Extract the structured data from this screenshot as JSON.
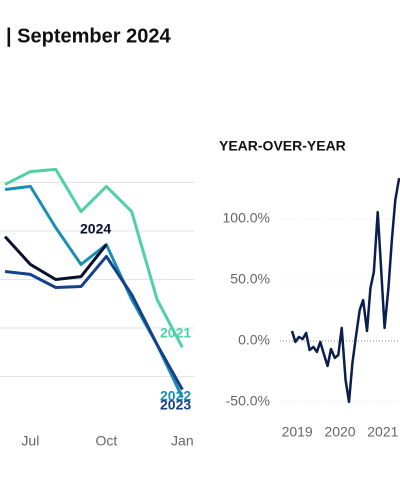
{
  "chart_data": [
    {
      "type": "line",
      "title": "| September 2024",
      "x": [
        6,
        7,
        8,
        9,
        10,
        11,
        12,
        13
      ],
      "xlim": [
        5.8,
        13.5
      ],
      "xticks": [
        {
          "value": 7,
          "label": "Jul"
        },
        {
          "value": 10,
          "label": "Oct"
        },
        {
          "value": 13,
          "label": "Jan"
        }
      ],
      "ylim": [
        0,
        120
      ],
      "yticks": [
        20,
        40,
        60,
        80,
        100
      ],
      "grid": true,
      "series": [
        {
          "name": "2021",
          "color": "#4fd1a5",
          "values": [
            99.2,
            104.5,
            105.4,
            88.0,
            98.4,
            88.0,
            51.8,
            32.0
          ]
        },
        {
          "name": "2022",
          "color": "#1a8fb5",
          "values": [
            97.1,
            98.4,
            81.4,
            66.2,
            74.4,
            51.8,
            33.2,
            11.3
          ]
        },
        {
          "name": "2023",
          "color": "#14418a",
          "values": [
            63.3,
            62.1,
            56.7,
            57.1,
            69.5,
            53.8,
            33.2,
            14.6
          ]
        },
        {
          "name": "2024",
          "color": "#0a0f2e",
          "values": [
            77.7,
            66.2,
            60.0,
            61.2,
            74.4,
            null,
            null,
            null
          ]
        }
      ]
    },
    {
      "type": "line",
      "title": "YEAR-OVER-YEAR",
      "x": [
        2018.88,
        2018.96,
        2019.04,
        2019.13,
        2019.21,
        2019.29,
        2019.38,
        2019.46,
        2019.54,
        2019.63,
        2019.71,
        2019.79,
        2019.88,
        2019.96,
        2020.04,
        2020.13,
        2020.21,
        2020.29,
        2020.38,
        2020.46,
        2020.54,
        2020.63,
        2020.71,
        2020.79,
        2020.88,
        2020.96,
        2021.04,
        2021.13,
        2021.21,
        2021.29,
        2021.38
      ],
      "values": [
        8.2,
        -0.8,
        3.3,
        1.6,
        6.6,
        -7.4,
        -4.9,
        -9.0,
        -0.8,
        -11.5,
        -20.5,
        -6.6,
        -13.9,
        -11.5,
        10.7,
        -32.0,
        -50.0,
        -18.0,
        5.7,
        25.4,
        33.6,
        8.2,
        43.4,
        56.6,
        105.7,
        59.0,
        10.7,
        43.4,
        82.8,
        115.6,
        133.6
      ],
      "color": "#0a1f4e",
      "xlim": [
        2018.6,
        2021.4
      ],
      "xticks": [
        2019,
        2020,
        2021
      ],
      "ylim": [
        -60.7,
        148.4
      ],
      "yticks": [
        {
          "value": 100,
          "label": "100.0%"
        },
        {
          "value": 50,
          "label": "50.0%"
        },
        {
          "value": 0,
          "label": "0.0%"
        },
        {
          "value": -50,
          "label": "-50.0%"
        }
      ],
      "grid": true
    }
  ]
}
